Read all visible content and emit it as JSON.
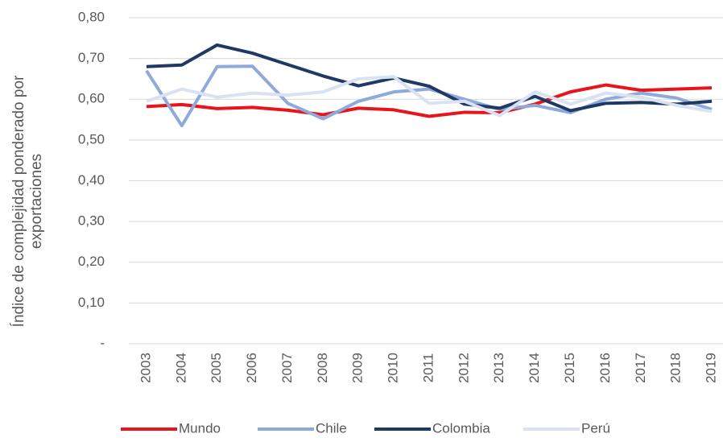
{
  "chart_data": {
    "type": "line",
    "ylabel": [
      "Índice de complejidad ponderado por",
      "exportaciones"
    ],
    "categories": [
      "2003",
      "2004",
      "2005",
      "2006",
      "2007",
      "2008",
      "2009",
      "2010",
      "2011",
      "2012",
      "2013",
      "2014",
      "2015",
      "2016",
      "2017",
      "2018",
      "2019"
    ],
    "series": [
      {
        "name": "Mundo",
        "color": "#e8141c",
        "values": [
          0.582,
          0.587,
          0.577,
          0.58,
          0.573,
          0.562,
          0.578,
          0.574,
          0.558,
          0.568,
          0.567,
          0.588,
          0.618,
          0.635,
          0.622,
          0.625,
          0.628
        ]
      },
      {
        "name": "Chile",
        "color": "#8eaadb",
        "values": [
          0.67,
          0.535,
          0.68,
          0.681,
          0.59,
          0.552,
          0.595,
          0.618,
          0.625,
          0.6,
          0.575,
          0.585,
          0.567,
          0.6,
          0.615,
          0.603,
          0.575
        ]
      },
      {
        "name": "Colombia",
        "color": "#1f3864",
        "values": [
          0.68,
          0.684,
          0.733,
          0.713,
          0.685,
          0.657,
          0.633,
          0.652,
          0.632,
          0.588,
          0.578,
          0.607,
          0.572,
          0.59,
          0.592,
          0.588,
          0.595
        ]
      },
      {
        "name": "Perú",
        "color": "#d9e2f3",
        "values": [
          0.595,
          0.625,
          0.605,
          0.615,
          0.61,
          0.618,
          0.65,
          0.655,
          0.59,
          0.595,
          0.56,
          0.618,
          0.588,
          0.615,
          0.605,
          0.585,
          0.57
        ]
      }
    ],
    "ylim": [
      0,
      0.8
    ],
    "yticks": [
      {
        "value": 0,
        "label": "-"
      },
      {
        "value": 0.1,
        "label": "0,10"
      },
      {
        "value": 0.2,
        "label": "0,20"
      },
      {
        "value": 0.3,
        "label": "0,30"
      },
      {
        "value": 0.4,
        "label": "0,40"
      },
      {
        "value": 0.5,
        "label": "0,50"
      },
      {
        "value": 0.6,
        "label": "0,60"
      },
      {
        "value": 0.7,
        "label": "0,70"
      },
      {
        "value": 0.8,
        "label": "0,80"
      }
    ],
    "grid": true,
    "legend": "bottom"
  }
}
